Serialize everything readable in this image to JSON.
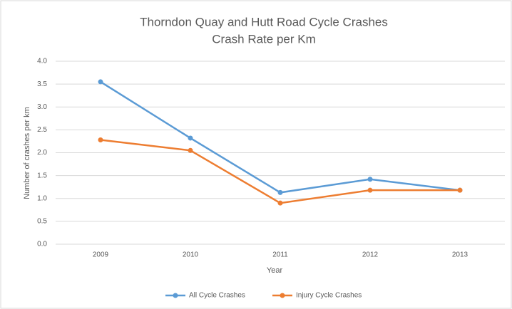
{
  "chart_data": {
    "type": "line",
    "title": "Thorndon Quay and Hutt Road Cycle Crashes",
    "subtitle": "Crash Rate per Km",
    "x_label": "Year",
    "y_label": "Number of crashes per km",
    "categories": [
      "2009",
      "2010",
      "2011",
      "2012",
      "2013"
    ],
    "series": [
      {
        "name": "All Cycle Crashes",
        "color": "#5b9bd5",
        "values": [
          3.55,
          2.32,
          1.13,
          1.42,
          1.18
        ]
      },
      {
        "name": "Injury Cycle Crashes",
        "color": "#ed7d31",
        "values": [
          2.28,
          2.05,
          0.9,
          1.18,
          1.18
        ]
      }
    ],
    "ylim": [
      0,
      4
    ],
    "yticks": [
      {
        "value": 0,
        "label": "0.0"
      },
      0.5,
      {
        "value": 1,
        "label": "1.0"
      },
      1.5,
      {
        "value": 2,
        "label": "2.0"
      },
      2.5,
      {
        "value": 3,
        "label": "3.0"
      },
      3.5,
      {
        "value": 4,
        "label": "4.0"
      }
    ],
    "grid": true,
    "legend": "bottom"
  }
}
